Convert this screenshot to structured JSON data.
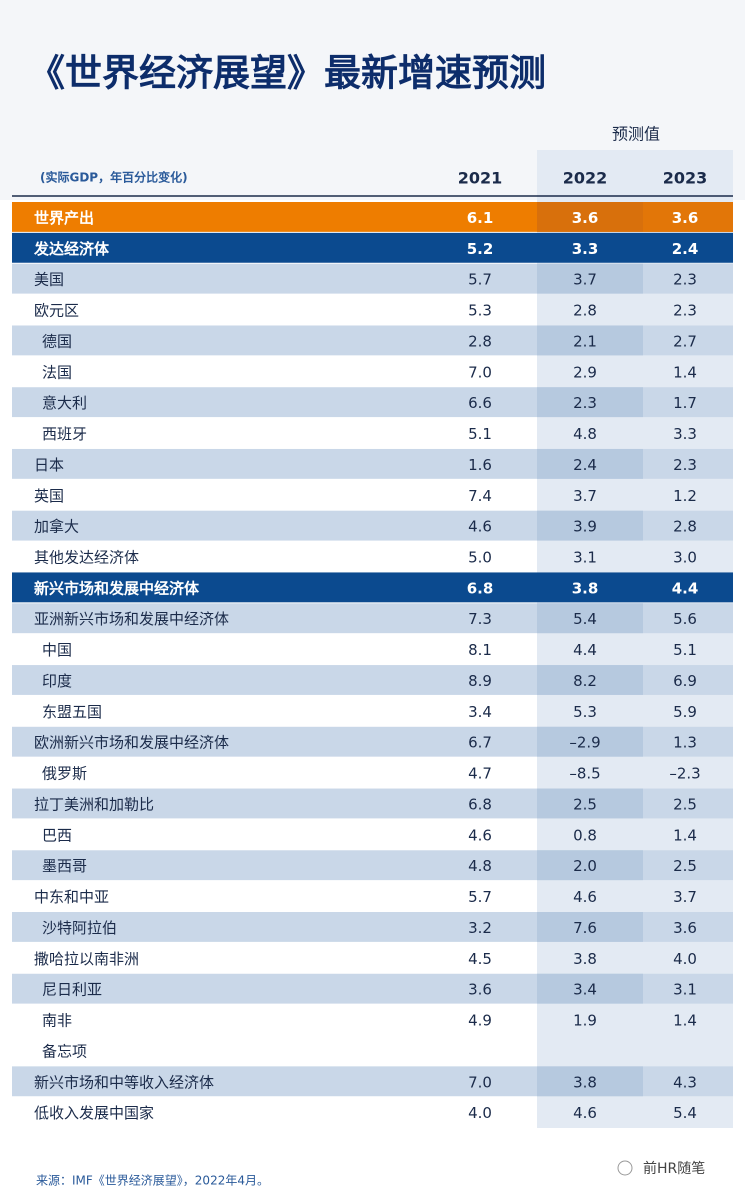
{
  "header": {
    "title": "《世界经济展望》最新增速预测",
    "forecast_label": "预测值",
    "unit_note": "(实际GDP，年百分比变化)",
    "years": [
      "2021",
      "2022",
      "2023"
    ]
  },
  "table": {
    "rows": [
      [
        "世界产出",
        "6.1",
        "3.6",
        "3.6"
      ],
      [
        "发达经济体",
        "5.2",
        "3.3",
        "2.4"
      ],
      [
        "美国",
        "5.7",
        "3.7",
        "2.3"
      ],
      [
        "欧元区",
        "5.3",
        "2.8",
        "2.3"
      ],
      [
        "德国",
        "2.8",
        "2.1",
        "2.7"
      ],
      [
        "法国",
        "7.0",
        "2.9",
        "1.4"
      ],
      [
        "意大利",
        "6.6",
        "2.3",
        "1.7"
      ],
      [
        "西班牙",
        "5.1",
        "4.8",
        "3.3"
      ],
      [
        "日本",
        "1.6",
        "2.4",
        "2.3"
      ],
      [
        "英国",
        "7.4",
        "3.7",
        "1.2"
      ],
      [
        "加拿大",
        "4.6",
        "3.9",
        "2.8"
      ],
      [
        "其他发达经济体",
        "5.0",
        "3.1",
        "3.0"
      ],
      [
        "新兴市场和发展中经济体",
        "6.8",
        "3.8",
        "4.4"
      ],
      [
        "亚洲新兴市场和发展中经济体",
        "7.3",
        "5.4",
        "5.6"
      ],
      [
        "中国",
        "8.1",
        "4.4",
        "5.1"
      ],
      [
        "印度",
        "8.9",
        "8.2",
        "6.9"
      ],
      [
        "东盟五国",
        "3.4",
        "5.3",
        "5.9"
      ],
      [
        "欧洲新兴市场和发展中经济体",
        "6.7",
        "–2.9",
        "1.3"
      ],
      [
        "俄罗斯",
        "4.7",
        "–8.5",
        "–2.3"
      ],
      [
        "拉丁美洲和加勒比",
        "6.8",
        "2.5",
        "2.5"
      ],
      [
        "巴西",
        "4.6",
        "0.8",
        "1.4"
      ],
      [
        "墨西哥",
        "4.8",
        "2.0",
        "2.5"
      ],
      [
        "中东和中亚",
        "5.7",
        "4.6",
        "3.7"
      ],
      [
        "沙特阿拉伯",
        "3.2",
        "7.6",
        "3.6"
      ],
      [
        "撒哈拉以南非洲",
        "4.5",
        "3.8",
        "4.0"
      ],
      [
        "尼日利亚",
        "3.6",
        "3.4",
        "3.1"
      ],
      [
        "南非",
        "4.9",
        "1.9",
        "1.4"
      ],
      [
        "备忘项"
      ],
      [
        "新兴市场和中等收入经济体",
        "7.0",
        "3.8",
        "4.3"
      ],
      [
        "低收入发展中国家",
        "4.0",
        "4.6",
        "5.4"
      ]
    ]
  },
  "footer": {
    "source": "来源：IMF《世界经济展望》，2022年4月。",
    "watermark": "前HR随笔"
  }
}
